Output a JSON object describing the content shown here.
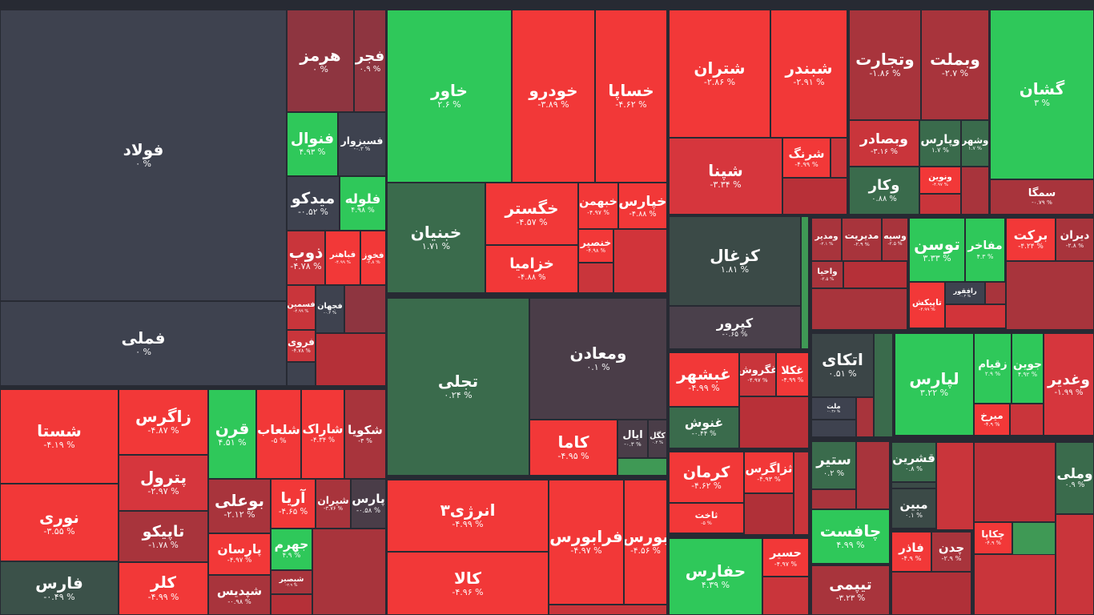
{
  "tiles": [
    {
      "name": "فولاد",
      "change": "۰ %",
      "color": "#3e424f"
    },
    {
      "name": "فملی",
      "change": "۰ %",
      "color": "#3e424f"
    },
    {
      "name": "هرمز",
      "change": "۰ %",
      "color": "#8e3540"
    },
    {
      "name": "فجر",
      "change": "۰.۹ %",
      "color": "#8e3540"
    },
    {
      "name": "فنوال",
      "change": "۴.۹۳ %",
      "color": "#2fc85a"
    },
    {
      "name": "فسبزوار",
      "change": "-۰.۳ %",
      "color": "#3e424f"
    },
    {
      "name": "میدکو",
      "change": "-۰.۵۲ %",
      "color": "#3e424f"
    },
    {
      "name": "فلوله",
      "change": "۴.۹۸ %",
      "color": "#2fc85a"
    },
    {
      "name": "ذوب",
      "change": "-۴.۷۸ %",
      "color": "#c9353b"
    },
    {
      "name": "فباهنر",
      "change": "-۴.۹۹ %",
      "color": "#f23838"
    },
    {
      "name": "فخوز",
      "change": "-۴.۸ %",
      "color": "#f23838"
    },
    {
      "name": "فسمین",
      "change": "-۴.۹۹ %",
      "color": "#c9353b"
    },
    {
      "name": "فجهان",
      "change": "-۰.۲ %",
      "color": "#3e424f"
    },
    {
      "name": "فروی",
      "change": "-۴.۷۸ %",
      "color": "#c9353b"
    },
    {
      "name": "شستا",
      "change": "-۴.۱۹ %",
      "color": "#f23838"
    },
    {
      "name": "نوری",
      "change": "-۳.۵۵ %",
      "color": "#f23838"
    },
    {
      "name": "فارس",
      "change": "-۰.۴۹ %",
      "color": "#3b5149"
    },
    {
      "name": "زاگرس",
      "change": "-۴.۸۷ %",
      "color": "#f23838"
    },
    {
      "name": "پترول",
      "change": "-۲.۹۷ %",
      "color": "#d6363d"
    },
    {
      "name": "تاپیکو",
      "change": "-۱.۷۸ %",
      "color": "#a8343c"
    },
    {
      "name": "کلر",
      "change": "-۴.۹۹ %",
      "color": "#f23838"
    },
    {
      "name": "قرن",
      "change": "۴.۵۱ %",
      "color": "#2fc85a"
    },
    {
      "name": "شلعاب",
      "change": "-۵ %",
      "color": "#f23838"
    },
    {
      "name": "شاراک",
      "change": "-۴.۳۴ %",
      "color": "#f23838"
    },
    {
      "name": "شکویا",
      "change": "-۴ %",
      "color": "#a8343c"
    },
    {
      "name": "بوعلی",
      "change": "-۲.۱۲ %",
      "color": "#a8343c"
    },
    {
      "name": "پارسان",
      "change": "-۴.۹۷ %",
      "color": "#f23838"
    },
    {
      "name": "شپدیس",
      "change": "-۰.۹۸ %",
      "color": "#a8343c"
    },
    {
      "name": "آریا",
      "change": "-۴.۶۵ %",
      "color": "#f23838"
    },
    {
      "name": "شیران",
      "change": "-۳.۷۶ %",
      "color": "#a8343c"
    },
    {
      "name": "پارس",
      "change": "-۰.۵۸ %",
      "color": "#4a3d48"
    },
    {
      "name": "جهرم",
      "change": "۴.۹ %",
      "color": "#2fc85a"
    },
    {
      "name": "شبصیر",
      "change": "-۴.۹ %",
      "color": "#a8343c"
    },
    {
      "name": "خاور",
      "change": "۲.۶ %",
      "color": "#2fc85a"
    },
    {
      "name": "خودرو",
      "change": "-۳.۸۹ %",
      "color": "#f23838"
    },
    {
      "name": "خساپا",
      "change": "-۴.۶۲ %",
      "color": "#f23838"
    },
    {
      "name": "خبنیان",
      "change": "۱.۷۱ %",
      "color": "#3a6b4c"
    },
    {
      "name": "خگستر",
      "change": "-۴.۵۷ %",
      "color": "#f23838"
    },
    {
      "name": "خزامیا",
      "change": "-۴.۸۸ %",
      "color": "#f23838"
    },
    {
      "name": "خبهمن",
      "change": "-۴.۹۷ %",
      "color": "#f23838"
    },
    {
      "name": "خپارس",
      "change": "-۴.۸۸ %",
      "color": "#f23838"
    },
    {
      "name": "خنصیر",
      "change": "-۴.۹۸ %",
      "color": "#f23838"
    },
    {
      "name": "تجلی",
      "change": "۰.۲۴ %",
      "color": "#3a6b4c"
    },
    {
      "name": "ومعادن",
      "change": "۰.۱ %",
      "color": "#4a3d48"
    },
    {
      "name": "کاما",
      "change": "-۴.۹۵ %",
      "color": "#f23838"
    },
    {
      "name": "ایال",
      "change": "-۰.۳ %",
      "color": "#4a3d48"
    },
    {
      "name": "کگل",
      "change": "۰.۲ %",
      "color": "#4a3d48"
    },
    {
      "name": "انرژی۳",
      "change": "-۴.۹۹ %",
      "color": "#f23838"
    },
    {
      "name": "کالا",
      "change": "-۴.۹۶ %",
      "color": "#f23838"
    },
    {
      "name": "فرابورس",
      "change": "-۴.۹۷ %",
      "color": "#f23838"
    },
    {
      "name": "بورس",
      "change": "-۴.۵۶ %",
      "color": "#f23838"
    },
    {
      "name": "شتران",
      "change": "-۲.۸۶ %",
      "color": "#f23838"
    },
    {
      "name": "شبندر",
      "change": "-۲.۹۱ %",
      "color": "#f23838"
    },
    {
      "name": "شپنا",
      "change": "-۳.۳۴ %",
      "color": "#d6363d"
    },
    {
      "name": "شرنگ",
      "change": "-۴.۹۹ %",
      "color": "#f23838"
    },
    {
      "name": "وتجارت",
      "change": "-۱.۸۶ %",
      "color": "#a8343c"
    },
    {
      "name": "وبملت",
      "change": "-۲.۷ %",
      "color": "#a8343c"
    },
    {
      "name": "وبصادر",
      "change": "-۳.۱۶ %",
      "color": "#c9353b"
    },
    {
      "name": "وپارس",
      "change": "۱.۷ %",
      "color": "#3a6b4c"
    },
    {
      "name": "وشهر",
      "change": "۱.۷ %",
      "color": "#3a6b4c"
    },
    {
      "name": "وکار",
      "change": "۰.۸۸ %",
      "color": "#3a6b4c"
    },
    {
      "name": "ونوین",
      "change": "-۴.۹۷ %",
      "color": "#f23838"
    },
    {
      "name": "گشان",
      "change": "۳ %",
      "color": "#2fc85a"
    },
    {
      "name": "سمگا",
      "change": "-۰.۷۹ %",
      "color": "#a8343c"
    },
    {
      "name": "کزغال",
      "change": "۱.۸۱ %",
      "color": "#3b4a47"
    },
    {
      "name": "کپرور",
      "change": "-۰.۶۵ %",
      "color": "#4a404b"
    },
    {
      "name": "غبشهر",
      "change": "-۴.۹۹ %",
      "color": "#f23838"
    },
    {
      "name": "غنوش",
      "change": "-۰.۴۴ %",
      "color": "#3a6b4c"
    },
    {
      "name": "غگروش",
      "change": "-۴.۹۷ %",
      "color": "#c9353b"
    },
    {
      "name": "غکلا",
      "change": "-۴.۹۹ %",
      "color": "#f23838"
    },
    {
      "name": "کرمان",
      "change": "-۴.۶۲ %",
      "color": "#f23838"
    },
    {
      "name": "ثاخت",
      "change": "-۵ %",
      "color": "#f23838"
    },
    {
      "name": "ثزاگرس",
      "change": "-۴.۹۳ %",
      "color": "#f23838"
    },
    {
      "name": "حفارس",
      "change": "۴.۳۹ %",
      "color": "#2fc85a"
    },
    {
      "name": "حسیر",
      "change": "-۴.۹۷ %",
      "color": "#f23838"
    },
    {
      "name": "ومدیر",
      "change": "-۲.۱ %",
      "color": "#a8343c"
    },
    {
      "name": "مدیریت",
      "change": "-۲.۹ %",
      "color": "#a8343c"
    },
    {
      "name": "وسپه",
      "change": "-۲.۵ %",
      "color": "#a8343c"
    },
    {
      "name": "واحیا",
      "change": "-۳.۵ %",
      "color": "#a8343c"
    },
    {
      "name": "توسن",
      "change": "۳.۳۳ %",
      "color": "#2fc85a"
    },
    {
      "name": "مفاخر",
      "change": "۴.۳ %",
      "color": "#2fc85a"
    },
    {
      "name": "تاپیکش",
      "change": "-۴.۹۹ %",
      "color": "#f23838"
    },
    {
      "name": "رافقور",
      "change": "-۰.۳ %",
      "color": "#3e424f"
    },
    {
      "name": "برکت",
      "change": "-۴.۲۴ %",
      "color": "#f23838"
    },
    {
      "name": "دیران",
      "change": "-۲.۸ %",
      "color": "#a8343c"
    },
    {
      "name": "اتکای",
      "change": "۰.۵۱ %",
      "color": "#3b4547"
    },
    {
      "name": "ملت",
      "change": "-۰.۳۶ %",
      "color": "#3e424f"
    },
    {
      "name": "لپارس",
      "change": "۳.۲۲ %",
      "color": "#2fc85a"
    },
    {
      "name": "زقیام",
      "change": "۲.۹ %",
      "color": "#2fc85a"
    },
    {
      "name": "جوین",
      "change": "۴.۹۲ %",
      "color": "#2fc85a"
    },
    {
      "name": "میرخ",
      "change": "-۴.۹ %",
      "color": "#f23838"
    },
    {
      "name": "وغدیر",
      "change": "-۱.۹۹ %",
      "color": "#d6363d"
    },
    {
      "name": "ستیر",
      "change": "۰.۲ %",
      "color": "#3a6b4c"
    },
    {
      "name": "چافست",
      "change": "۴.۹۹ %",
      "color": "#2fc85a"
    },
    {
      "name": "تیپمی",
      "change": "-۳.۲۳ %",
      "color": "#a8343c"
    },
    {
      "name": "قشرین",
      "change": "۰.۸ %",
      "color": "#3a6b4c"
    },
    {
      "name": "مبین",
      "change": "۰.۱ %",
      "color": "#3b4a47"
    },
    {
      "name": "فاذر",
      "change": "-۴.۹ %",
      "color": "#f23838"
    },
    {
      "name": "چدن",
      "change": "-۲.۹ %",
      "color": "#a8343c"
    },
    {
      "name": "وملی",
      "change": "۰.۹ %",
      "color": "#3a6b4c"
    },
    {
      "name": "چکاپا",
      "change": "-۴.۹ %",
      "color": "#f23838"
    }
  ]
}
